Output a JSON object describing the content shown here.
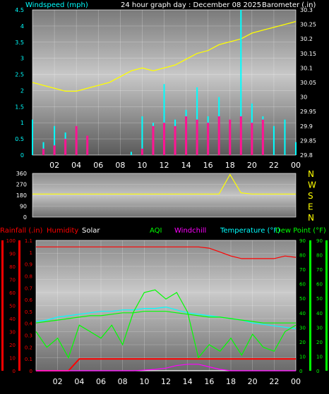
{
  "colors": {
    "background": "#000000",
    "windspeed": "#00ffff",
    "gust": "#ff1493",
    "barometer": "#ffff00",
    "wind_direction": "#ffff00",
    "compass_letters": "#ffff00",
    "rainfall": "#ff0000",
    "humidity": "#ff0000",
    "solar": "#ffffff",
    "uv": "#ff00ff",
    "aqi": "#00ff00",
    "windchill": "#ff00ff",
    "temperature": "#00ffff",
    "dew_point": "#00ff00",
    "tick_label": "#ffffff"
  },
  "header": {
    "title": "24 hour graph day : December 08 2025"
  },
  "chart_data": [
    {
      "type": "line",
      "title": "24 hour graph day : December 08 2025",
      "ylabel_left": "Windspeed (mph)",
      "ylabel_right": "Barometer (.in)",
      "x_ticks": [
        "02",
        "04",
        "06",
        "08",
        "10",
        "12",
        "14",
        "16",
        "18",
        "20",
        "22",
        "00"
      ],
      "x": [
        0,
        1,
        2,
        3,
        4,
        5,
        6,
        7,
        8,
        9,
        10,
        11,
        12,
        13,
        14,
        15,
        16,
        17,
        18,
        19,
        20,
        21,
        22,
        23,
        24
      ],
      "ylim_left": [
        0,
        4.5
      ],
      "y_ticks_left": [
        "0",
        "0.5",
        "1",
        "1.5",
        "2",
        "2.5",
        "3",
        "3.5",
        "4",
        "4.5"
      ],
      "ylim_right": [
        29.8,
        30.3
      ],
      "y_ticks_right": [
        "29.8",
        "29.85",
        "29.9",
        "29.95",
        "30",
        "30.05",
        "30.1",
        "30.15",
        "30.2",
        "30.25",
        "30.3"
      ],
      "series": [
        {
          "key": "barometer",
          "axis": "right",
          "values": [
            30.05,
            30.04,
            30.03,
            30.02,
            30.02,
            30.03,
            30.04,
            30.05,
            30.07,
            30.09,
            30.1,
            30.09,
            30.1,
            30.11,
            30.13,
            30.15,
            30.16,
            30.18,
            30.19,
            30.2,
            30.22,
            30.23,
            30.24,
            30.25,
            30.26
          ]
        },
        {
          "key": "windspeed",
          "axis": "left",
          "values": [
            1.1,
            0.4,
            0.9,
            0.7,
            0.2,
            0.1,
            0,
            0,
            0,
            0.1,
            1.2,
            1.0,
            2.2,
            1.1,
            1.4,
            2.1,
            1.2,
            1.8,
            1.1,
            4.5,
            1.6,
            1.2,
            0.9,
            1.1,
            0.4
          ]
        },
        {
          "key": "gust",
          "axis": "left",
          "values": [
            0,
            0.2,
            0.3,
            0.5,
            0.9,
            0.6,
            0,
            0,
            0,
            0,
            0.2,
            0.9,
            1.0,
            0.9,
            1.2,
            1.1,
            1.0,
            1.2,
            1.1,
            1.2,
            1.0,
            1.1,
            0,
            0,
            0
          ]
        }
      ]
    },
    {
      "type": "line",
      "y_ticks": [
        "0",
        "90",
        "180",
        "270",
        "360"
      ],
      "ylim": [
        0,
        360
      ],
      "right_labels": [
        "N",
        "W",
        "S",
        "E",
        "N"
      ],
      "series": [
        {
          "key": "wind_direction",
          "values": [
            190,
            190,
            190,
            190,
            190,
            190,
            190,
            190,
            190,
            190,
            190,
            190,
            190,
            190,
            190,
            190,
            190,
            190,
            350,
            200,
            190,
            190,
            190,
            190,
            190
          ]
        }
      ]
    },
    {
      "type": "line",
      "legend": [
        "Rainfall (.in)",
        "Humidity",
        "Solar",
        "AQI",
        "Windchill",
        "Temperature (°F)",
        "Dew Point (°F)"
      ],
      "ylim_rain": [
        0,
        1.1
      ],
      "y_ticks_rain": [
        "0",
        "0.1",
        "0.2",
        "0.3",
        "0.4",
        "0.5",
        "0.6",
        "0.7",
        "0.8",
        "0.9",
        "1",
        "1.1"
      ],
      "ylim_humidity": [
        0,
        100
      ],
      "y_ticks_humidity": [
        "0",
        "10",
        "20",
        "30",
        "40",
        "50",
        "60",
        "70",
        "80",
        "90",
        "100"
      ],
      "ylim_temp": [
        0,
        90
      ],
      "y_ticks_temp": [
        "0",
        "10",
        "20",
        "30",
        "40",
        "50",
        "60",
        "70",
        "80",
        "90"
      ],
      "series": [
        {
          "key": "humidity",
          "values": [
            95,
            95,
            95,
            95,
            95,
            95,
            95,
            95,
            95,
            95,
            95,
            95,
            95,
            95,
            95,
            95,
            94,
            91,
            88,
            86,
            86,
            86,
            86,
            88,
            87
          ]
        },
        {
          "key": "rainfall",
          "values": [
            0,
            0,
            0,
            0,
            0.1,
            0.1,
            0.1,
            0.1,
            0.1,
            0.1,
            0.1,
            0.1,
            0.1,
            0.1,
            0.1,
            0.1,
            0.1,
            0.1,
            0.1,
            0.1,
            0.1,
            0.1,
            0.1,
            0.1,
            0.1
          ]
        },
        {
          "key": "temperature",
          "values": [
            34,
            35,
            37,
            38,
            39,
            40,
            41,
            41,
            42,
            42,
            43,
            43,
            44,
            42,
            40,
            39,
            38,
            37,
            36,
            35,
            33,
            32,
            31,
            30,
            29
          ]
        },
        {
          "key": "dew_point",
          "values": [
            33,
            34,
            35,
            36,
            37,
            38,
            38,
            39,
            40,
            40,
            41,
            41,
            41,
            40,
            39,
            38,
            37,
            37,
            36,
            35,
            34,
            33,
            33,
            33,
            33
          ]
        },
        {
          "key": "aqi",
          "values": [
            30,
            18,
            25,
            10,
            35,
            30,
            25,
            35,
            20,
            45,
            60,
            62,
            55,
            60,
            45,
            10,
            20,
            15,
            25,
            12,
            28,
            18,
            15,
            30,
            35
          ]
        },
        {
          "key": "solar",
          "values": [
            0,
            0,
            0,
            0,
            0,
            0,
            0,
            0,
            0,
            0,
            0,
            0,
            0,
            0,
            0,
            0,
            0,
            0,
            0,
            0,
            0,
            0,
            0,
            0,
            0
          ]
        },
        {
          "key": "windchill",
          "values": [
            0,
            0,
            0,
            0,
            0,
            0,
            0,
            0,
            0,
            0,
            0.5,
            1,
            2,
            4,
            5,
            5,
            3,
            1,
            0,
            0,
            0,
            0,
            0,
            0,
            0
          ]
        }
      ]
    }
  ]
}
